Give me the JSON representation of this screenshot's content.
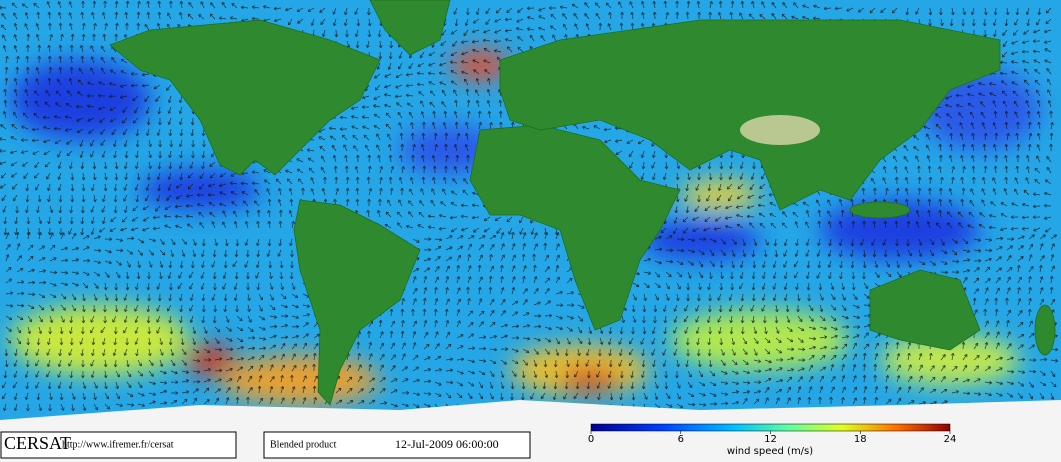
{
  "logo": "CERSAT",
  "url": "http://www.ifremer.fr/cersat",
  "product": "Blended product",
  "datetime": "12-Jul-2009 06:00:00",
  "colorbar": {
    "label": "wind speed (m/s)",
    "range": [
      0,
      24
    ],
    "ticks": [
      0,
      6,
      12,
      18,
      24
    ]
  }
}
